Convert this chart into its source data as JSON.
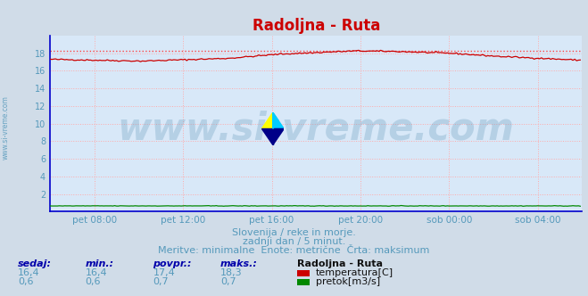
{
  "title": "Radoljna - Ruta",
  "bg_color": "#d0dce8",
  "plot_bg_color": "#d8e8f8",
  "grid_color": "#ffaaaa",
  "grid_style": ":",
  "axis_color": "#0000cc",
  "title_color": "#cc0000",
  "title_fontsize": 12,
  "tick_label_color": "#5599bb",
  "watermark_text": "www.si-vreme.com",
  "watermark_color": "#6699bb",
  "watermark_alpha": 0.3,
  "watermark_fontsize": 30,
  "subtitle1": "Slovenija / reke in morje.",
  "subtitle2": "zadnji dan / 5 minut.",
  "subtitle3": "Meritve: minimalne  Enote: metrične  Črta: maksimum",
  "subtitle_color": "#5599bb",
  "subtitle_fontsize": 8,
  "ylim": [
    0,
    20
  ],
  "yticks": [
    2,
    4,
    6,
    8,
    10,
    12,
    14,
    16,
    18
  ],
  "xtick_labels": [
    "pet 08:00",
    "pet 12:00",
    "pet 16:00",
    "pet 20:00",
    "sob 00:00",
    "sob 04:00"
  ],
  "n_points": 288,
  "temp_color": "#cc0000",
  "temp_max_line_color": "#ff4444",
  "temp_max_line_style": ":",
  "temp_max_value": 18.3,
  "flow_color": "#008800",
  "flow_max_value": 0.7,
  "legend_title": "Radoljna - Ruta",
  "legend_temp_label": "temperatura[C]",
  "legend_flow_label": "pretok[m3/s]",
  "table_headers": [
    "sedaj:",
    "min.:",
    "povpr.:",
    "maks.:"
  ],
  "table_temp_row": [
    "16,4",
    "16,4",
    "17,4",
    "18,3"
  ],
  "table_flow_row": [
    "0,6",
    "0,6",
    "0,7",
    "0,7"
  ],
  "table_color": "#5599bb",
  "table_bold_color": "#0000aa",
  "side_watermark": "www.si-vreme.com"
}
